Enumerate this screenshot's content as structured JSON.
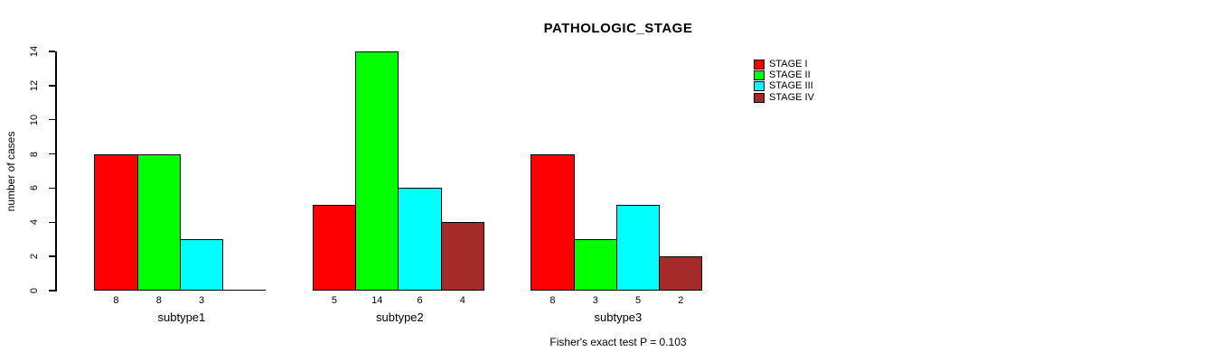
{
  "title": "PATHOLOGIC_STAGE",
  "footer": "Fisher's exact test P = 0.103",
  "chart_data": {
    "type": "bar",
    "title": "PATHOLOGIC_STAGE",
    "xlabel": "",
    "ylabel": "number of cases",
    "ylim": [
      0,
      14
    ],
    "yticks": [
      0,
      2,
      4,
      6,
      8,
      10,
      12,
      14
    ],
    "grid": false,
    "legend_position": "top-right",
    "bar_value_labels_shown": true,
    "zero_bars_drawn_as_baseline": true,
    "categories": [
      "subtype1",
      "subtype2",
      "subtype3"
    ],
    "series": [
      {
        "name": "STAGE I",
        "color": "#ff0000",
        "values": [
          8,
          5,
          8
        ]
      },
      {
        "name": "STAGE II",
        "color": "#00ff00",
        "values": [
          8,
          14,
          3
        ]
      },
      {
        "name": "STAGE III",
        "color": "#00ffff",
        "values": [
          3,
          6,
          5
        ]
      },
      {
        "name": "STAGE IV",
        "color": "#a52a2a",
        "values": [
          0,
          4,
          2
        ]
      }
    ],
    "annotation": "Fisher's exact test P = 0.103"
  }
}
